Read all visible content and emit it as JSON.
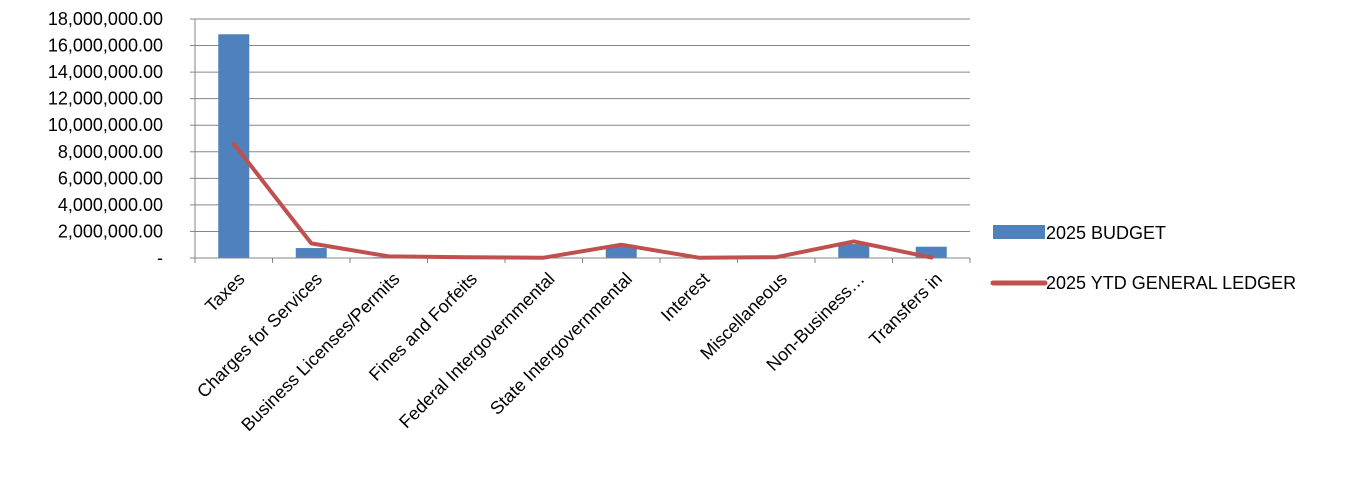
{
  "chart_data": {
    "type": "bar",
    "title": "",
    "xlabel": "",
    "ylabel": "",
    "ylim": [
      0,
      18000000
    ],
    "grid": true,
    "legend_position": "right",
    "y_ticks": [
      0,
      2000000,
      4000000,
      6000000,
      8000000,
      10000000,
      12000000,
      14000000,
      16000000,
      18000000
    ],
    "y_tick_labels": [
      "-",
      "2,000,000.00",
      "4,000,000.00",
      "6,000,000.00",
      "8,000,000.00",
      "10,000,000.00",
      "12,000,000.00",
      "14,000,000.00",
      "16,000,000.00",
      "18,000,000.00"
    ],
    "categories": [
      "Taxes",
      "Charges for Services",
      "Business Licenses/Permits",
      "Fines and Forfeits",
      "Federal Intergovernmental",
      "State Intergovernmental",
      "Interest",
      "Miscellaneous",
      "Non-Business…",
      "Transfers in"
    ],
    "series": [
      {
        "name": "2025 BUDGET",
        "type": "bar",
        "color": "#4f81bd",
        "values": [
          16850000,
          750000,
          60000,
          60000,
          20000,
          950000,
          20000,
          40000,
          1050000,
          850000
        ]
      },
      {
        "name": "2025 YTD GENERAL LEDGER",
        "type": "line",
        "color": "#c0504d",
        "values": [
          8600000,
          1100000,
          120000,
          60000,
          20000,
          1000000,
          20000,
          60000,
          1250000,
          30000
        ]
      }
    ]
  }
}
